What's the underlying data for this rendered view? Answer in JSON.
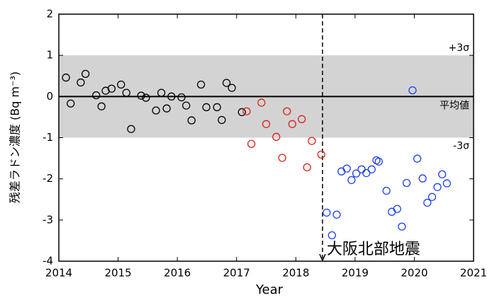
{
  "chart_data": {
    "type": "scatter",
    "x_label": "Year",
    "y_label": "残差ラドン濃度 (Bq m⁻³)",
    "xlim": [
      2014,
      2021
    ],
    "xticks": [
      2014,
      2015,
      2016,
      2017,
      2018,
      2019,
      2020,
      2021
    ],
    "ylim": [
      -4,
      2
    ],
    "yticks": [
      -4,
      -3,
      -2,
      -1,
      0,
      1,
      2
    ],
    "band": [
      -1,
      1
    ],
    "band_color": "#d3d3d3",
    "baseline": 0,
    "band_labels": [
      {
        "y": 1,
        "label": "+3σ"
      },
      {
        "y": 0,
        "label": "平均値"
      },
      {
        "y": -1,
        "label": "-3σ"
      }
    ],
    "event": {
      "x": 2018.45,
      "label": "大阪北部地震"
    },
    "series": [
      {
        "color": "#000000",
        "x": [
          2014.12,
          2014.2,
          2014.37,
          2014.45,
          2014.63,
          2014.72,
          2014.79,
          2014.89,
          2015.05,
          2015.14,
          2015.22,
          2015.39,
          2015.47,
          2015.64,
          2015.73,
          2015.82,
          2015.9,
          2016.07,
          2016.15,
          2016.24,
          2016.4,
          2016.49,
          2016.67,
          2016.75,
          2016.83,
          2016.92,
          2017.09
        ],
        "values": [
          0.46,
          -0.17,
          0.34,
          0.55,
          0.03,
          -0.24,
          0.14,
          0.19,
          0.29,
          0.09,
          -0.79,
          0.02,
          -0.03,
          -0.34,
          0.09,
          -0.29,
          0.0,
          -0.02,
          -0.22,
          -0.58,
          0.29,
          -0.26,
          -0.26,
          -0.57,
          0.33,
          0.21,
          -0.38
        ]
      },
      {
        "color": "#e0201a",
        "x": [
          2017.17,
          2017.25,
          2017.42,
          2017.5,
          2017.67,
          2017.77,
          2017.85,
          2017.94,
          2018.1,
          2018.19,
          2018.27,
          2018.43
        ],
        "values": [
          -0.36,
          -1.15,
          -0.15,
          -0.67,
          -0.98,
          -1.49,
          -0.36,
          -0.67,
          -0.55,
          -1.72,
          -1.08,
          -1.41
        ]
      },
      {
        "color": "#1f3ff0",
        "x": [
          2018.52,
          2018.61,
          2018.69,
          2018.77,
          2018.86,
          2018.94,
          2019.02,
          2019.11,
          2019.19,
          2019.28,
          2019.36,
          2019.4,
          2019.53,
          2019.62,
          2019.71,
          2019.79,
          2019.87,
          2019.97,
          2020.05,
          2020.14,
          2020.22,
          2020.3,
          2020.39,
          2020.47,
          2020.55
        ],
        "values": [
          -2.82,
          -3.37,
          -2.87,
          -1.82,
          -1.75,
          -2.03,
          -1.87,
          -1.77,
          -1.86,
          -1.77,
          -1.55,
          -1.58,
          -2.29,
          -2.8,
          -2.73,
          -3.16,
          -2.1,
          0.15,
          -1.51,
          -1.99,
          -2.58,
          -2.44,
          -2.2,
          -1.89,
          -2.11
        ]
      }
    ]
  }
}
